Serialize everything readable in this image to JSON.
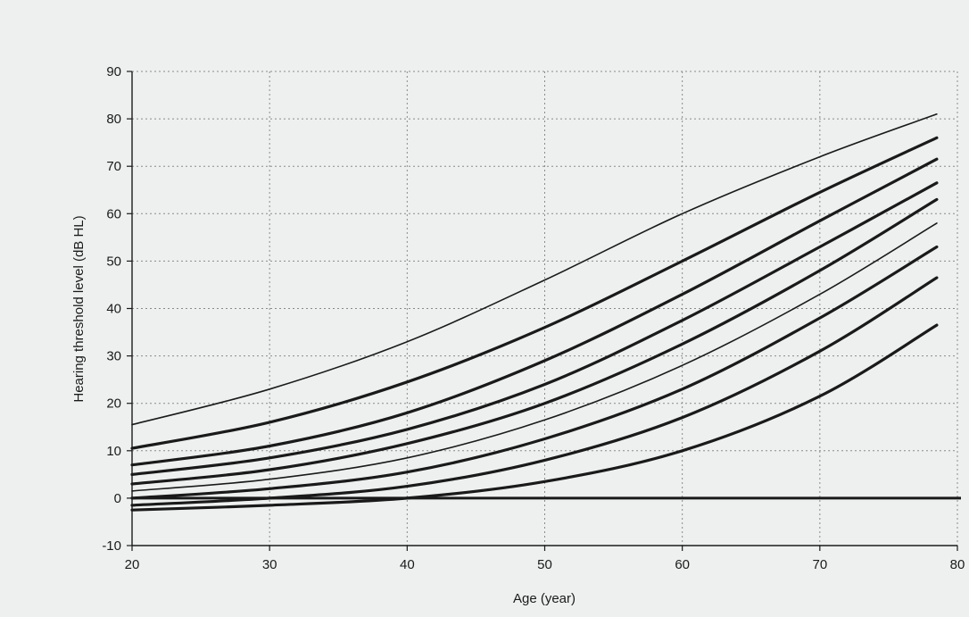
{
  "chart_data": {
    "type": "line",
    "title": "",
    "xlabel": "Age (year)",
    "ylabel": "Hearing threshold level (dB HL)",
    "xlim": [
      20,
      80
    ],
    "ylim": [
      -10,
      90
    ],
    "xticks": [
      20,
      30,
      40,
      50,
      60,
      70,
      80
    ],
    "yticks": [
      -10,
      0,
      10,
      20,
      30,
      40,
      50,
      60,
      70,
      80,
      90
    ],
    "grid": true,
    "legend": "none",
    "colors": {
      "line": "#1a1a1a",
      "grid": "#8a8a8a",
      "background": "#eef0f0"
    },
    "series": [
      {
        "x": [
          20,
          30,
          40,
          50,
          60,
          70,
          78.5
        ],
        "values": [
          15.5,
          23,
          33,
          46,
          60,
          72,
          81
        ],
        "weight": "thin"
      },
      {
        "x": [
          20,
          30,
          40,
          50,
          60,
          70,
          78.5
        ],
        "values": [
          10.5,
          16,
          24.5,
          36,
          50,
          64.5,
          76
        ],
        "weight": "thick"
      },
      {
        "x": [
          20,
          30,
          40,
          50,
          60,
          70,
          78.5
        ],
        "values": [
          7,
          11,
          18,
          29,
          43,
          58.5,
          71.5
        ],
        "weight": "thick"
      },
      {
        "x": [
          20,
          30,
          40,
          50,
          60,
          70,
          78.5
        ],
        "values": [
          5,
          8.5,
          14.5,
          24,
          37.5,
          53,
          66.5
        ],
        "weight": "thick"
      },
      {
        "x": [
          20,
          30,
          40,
          50,
          60,
          70,
          78.5
        ],
        "values": [
          3,
          6,
          11.5,
          20,
          32.5,
          48,
          63
        ],
        "weight": "thick"
      },
      {
        "x": [
          20,
          30,
          40,
          50,
          60,
          70,
          78.5
        ],
        "values": [
          1.5,
          4,
          8.5,
          16.5,
          28,
          43,
          58
        ],
        "weight": "thin"
      },
      {
        "x": [
          20,
          30,
          40,
          50,
          60,
          70,
          78.5
        ],
        "values": [
          0,
          2,
          5.5,
          12.5,
          23,
          38,
          53
        ],
        "weight": "thick"
      },
      {
        "x": [
          20,
          30,
          40,
          50,
          60,
          70,
          78.5
        ],
        "values": [
          -1.5,
          0,
          2.5,
          8,
          17,
          31,
          46.5
        ],
        "weight": "thick"
      },
      {
        "x": [
          20,
          30,
          40,
          50,
          60,
          70,
          78.5
        ],
        "values": [
          -2.5,
          -1.5,
          0,
          3.5,
          10,
          21.5,
          36.5
        ],
        "weight": "thick"
      }
    ]
  }
}
